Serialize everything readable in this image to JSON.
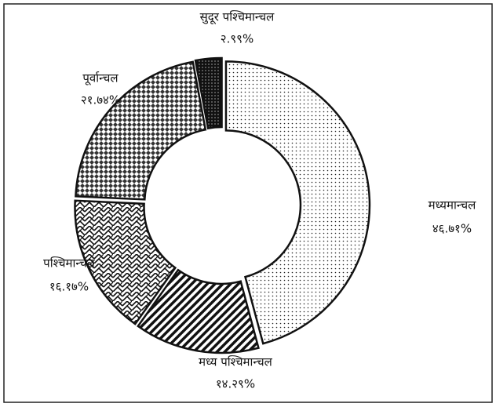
{
  "chart_data": {
    "type": "donut",
    "categories": [
      "मध्यमान्चल",
      "मध्य पश्चिमान्चल",
      "पश्चिमान्चल",
      "पूर्वान्चल",
      "सुदूर पश्चिमान्चल"
    ],
    "values": [
      46.71,
      14.29,
      16.17,
      21.74,
      2.99
    ],
    "value_labels": [
      "४६.७१%",
      "१४.२९%",
      "१६.१७%",
      "२१.७४%",
      "२.९९%"
    ]
  }
}
